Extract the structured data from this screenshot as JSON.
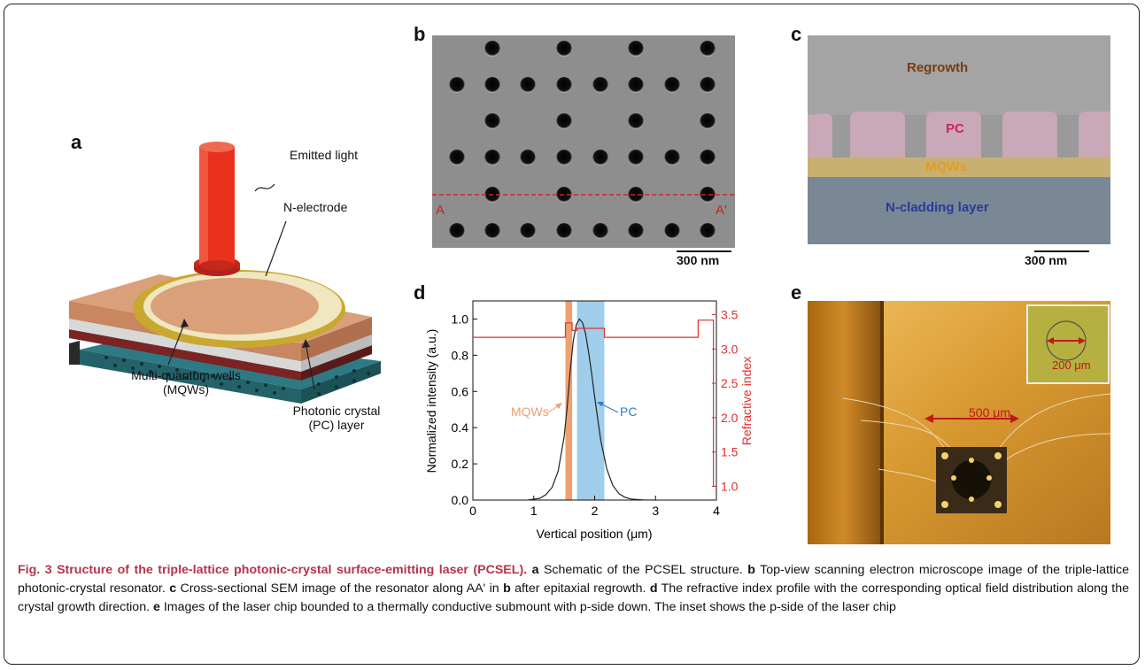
{
  "panels": {
    "a": {
      "label": "a",
      "callouts": {
        "emitted": "Emitted light",
        "electrode": "N-electrode",
        "mqw_line1": "Multi-quantum wells",
        "mqw_line2": "(MQWs)",
        "pc_line1": "Photonic crystal",
        "pc_line2": "(PC) layer"
      },
      "colors": {
        "beam": "#e8321e",
        "top_layer": "#d9a07a",
        "ring": "#c9a830",
        "pc_layer": "#2e7a84"
      }
    },
    "b": {
      "label": "b",
      "marker_left": "A",
      "marker_right": "A'",
      "scale": "300 nm"
    },
    "c": {
      "label": "c",
      "regrowth": "Regrowth",
      "pc": "PC",
      "mqws": "MQWs",
      "ncladding": "N-cladding layer",
      "scale": "300 nm",
      "colors": {
        "regrowth": "#7a3b12",
        "pc": "#d0206a",
        "mqws": "#e89a20",
        "ncladding": "#2b3a9a"
      }
    },
    "d": {
      "label": "d",
      "mqw_tag": "MQWs",
      "pc_tag": "PC"
    },
    "e": {
      "label": "e",
      "main_scale": "500 μm",
      "inset_scale": "200 μm"
    }
  },
  "chart_data": {
    "type": "line",
    "xlabel": "Vertical position (μm)",
    "ylabel": "Normalized intensity (a.u.)",
    "y2label": "Refractive index",
    "xlim": [
      0,
      4
    ],
    "ylim": [
      0,
      1.1
    ],
    "y2lim": [
      0.8,
      3.7
    ],
    "xticks": [
      "0",
      "1",
      "2",
      "3",
      "4"
    ],
    "yticks": [
      "0.0",
      "0.2",
      "0.4",
      "0.6",
      "0.8",
      "1.0"
    ],
    "y2ticks": [
      "1.0",
      "1.5",
      "2.0",
      "2.5",
      "3.0",
      "3.5"
    ],
    "regions": [
      {
        "name": "MQWs",
        "x0": 1.52,
        "x1": 1.63,
        "color": "#f0a070"
      },
      {
        "name": "PC",
        "x0": 1.71,
        "x1": 2.16,
        "color": "#9fcdea"
      }
    ],
    "series": [
      {
        "axis": "left",
        "color": "#222222",
        "x": [
          0.9,
          1.0,
          1.1,
          1.2,
          1.3,
          1.4,
          1.5,
          1.55,
          1.6,
          1.65,
          1.7,
          1.75,
          1.8,
          1.85,
          1.9,
          1.95,
          2.0,
          2.1,
          2.2,
          2.3,
          2.4,
          2.5,
          2.6,
          2.8,
          3.0
        ],
        "y": [
          0.0,
          0.005,
          0.01,
          0.03,
          0.07,
          0.16,
          0.35,
          0.52,
          0.72,
          0.88,
          0.97,
          1.0,
          0.98,
          0.92,
          0.82,
          0.7,
          0.57,
          0.33,
          0.17,
          0.08,
          0.035,
          0.015,
          0.006,
          0.001,
          0.0
        ]
      },
      {
        "axis": "right",
        "color": "#e03030",
        "x": [
          0.0,
          1.52,
          1.52,
          1.63,
          1.63,
          1.71,
          1.71,
          2.16,
          2.16,
          3.7,
          3.7,
          3.95,
          3.95,
          4.0
        ],
        "y": [
          3.17,
          3.17,
          3.38,
          3.38,
          3.27,
          3.27,
          3.3,
          3.3,
          3.17,
          3.17,
          3.42,
          3.42,
          1.0,
          1.0
        ]
      }
    ]
  },
  "caption": {
    "fig": "Fig. 3",
    "title": "Structure of the triple-lattice photonic-crystal surface-emitting laser (PCSEL).",
    "a": " Schematic of the PCSEL structure.",
    "b": " Top-view scanning electron microscope image of the triple-lattice photonic-crystal resonator.",
    "c_pre": " Cross-sectional SEM image of the resonator along AA' in ",
    "c_ref": "b",
    "c_post": " after epitaxial regrowth.",
    "d": " The refractive index profile with the corresponding optical field distribution along the crystal growth direction.",
    "e": " Images of the laser chip bounded to a thermally conductive submount with p-side down. The inset shows the p-side of the laser chip"
  }
}
